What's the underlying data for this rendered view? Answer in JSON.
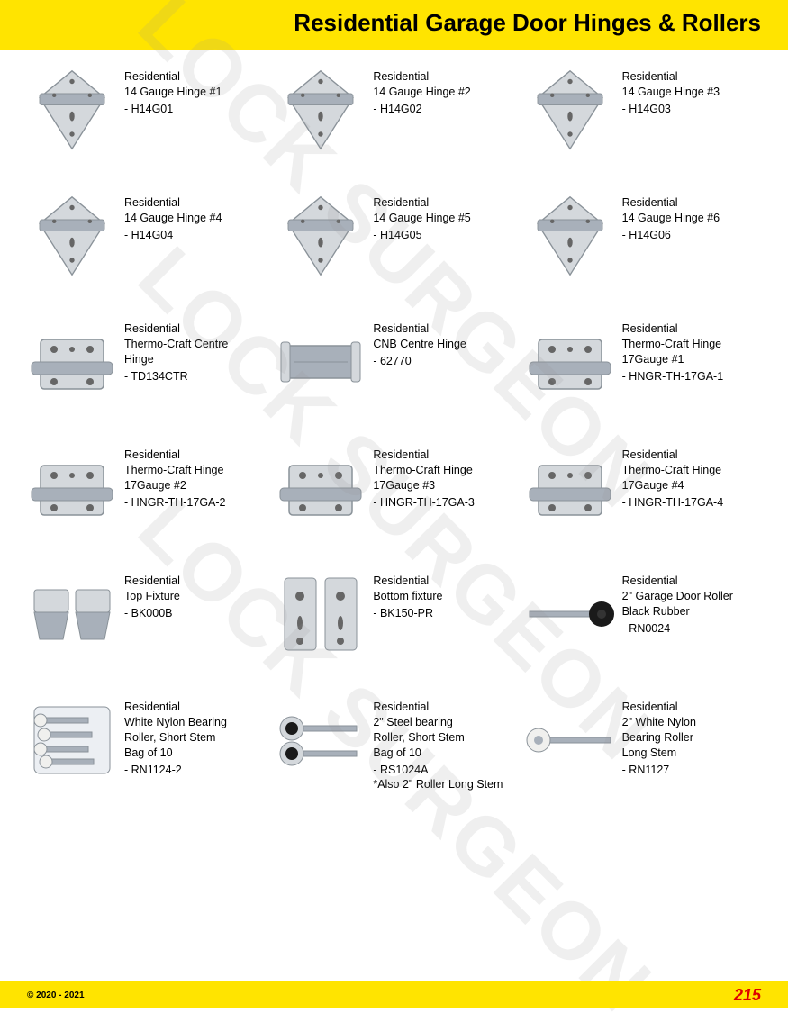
{
  "header": {
    "title": "Residential Garage Door Hinges & Rollers"
  },
  "products": [
    {
      "name": "Residential\n14 Gauge Hinge #1",
      "sku": "- H14G01",
      "shape": "diamond"
    },
    {
      "name": "Residential\n14 Gauge Hinge #2",
      "sku": "- H14G02",
      "shape": "diamond"
    },
    {
      "name": "Residential\n14 Gauge Hinge #3",
      "sku": "- H14G03",
      "shape": "diamond"
    },
    {
      "name": "Residential\n14 Gauge Hinge #4",
      "sku": "- H14G04",
      "shape": "diamond"
    },
    {
      "name": "Residential\n14 Gauge Hinge #5",
      "sku": "- H14G05",
      "shape": "diamond"
    },
    {
      "name": "Residential\n14 Gauge Hinge #6",
      "sku": "- H14G06",
      "shape": "diamond"
    },
    {
      "name": "Residential\nThermo-Craft Centre\nHinge",
      "sku": "- TD134CTR",
      "shape": "box"
    },
    {
      "name": "Residential\nCNB Centre Hinge",
      "sku": "- 62770",
      "shape": "barrel"
    },
    {
      "name": "Residential\nThermo-Craft Hinge\n17Gauge #1",
      "sku": "- HNGR-TH-17GA-1",
      "shape": "box"
    },
    {
      "name": "Residential\nThermo-Craft Hinge\n17Gauge #2",
      "sku": "- HNGR-TH-17GA-2",
      "shape": "box"
    },
    {
      "name": "Residential\nThermo-Craft Hinge\n17Gauge #3",
      "sku": "- HNGR-TH-17GA-3",
      "shape": "box"
    },
    {
      "name": "Residential\nThermo-Craft Hinge\n17Gauge #4",
      "sku": "- HNGR-TH-17GA-4",
      "shape": "box"
    },
    {
      "name": "Residential\nTop Fixture",
      "sku": "- BK000B",
      "shape": "pair"
    },
    {
      "name": "Residential\nBottom fixture",
      "sku": "- BK150-PR",
      "shape": "tallpair"
    },
    {
      "name": "Residential\n2\" Garage Door Roller\nBlack Rubber",
      "sku": "- RN0024",
      "shape": "rollerblack"
    },
    {
      "name": "Residential\nWhite Nylon Bearing\nRoller, Short Stem\nBag of 10",
      "sku": "- RN1124-2",
      "shape": "bag"
    },
    {
      "name": "Residential\n2\" Steel bearing\nRoller, Short Stem\nBag of 10",
      "sku": "- RS1024A\n*Also 2\" Roller Long Stem",
      "shape": "rollersteel"
    },
    {
      "name": "Residential\n2\" White Nylon\nBearing Roller\nLong Stem",
      "sku": "- RN1127",
      "shape": "rollerwhite"
    }
  ],
  "footer": {
    "copyright": "© 2020 - 2021",
    "page": "215"
  },
  "watermark": "LOCK SURGEON",
  "colors": {
    "header_bg": "#ffe400",
    "footer_bg": "#ffe400",
    "page_number": "#d00000",
    "metal_light": "#d4d8dc",
    "metal_mid": "#a8b0ba",
    "metal_dark": "#8a9299",
    "black": "#1a1a1a",
    "watermark": "rgba(150,150,150,0.15)"
  }
}
